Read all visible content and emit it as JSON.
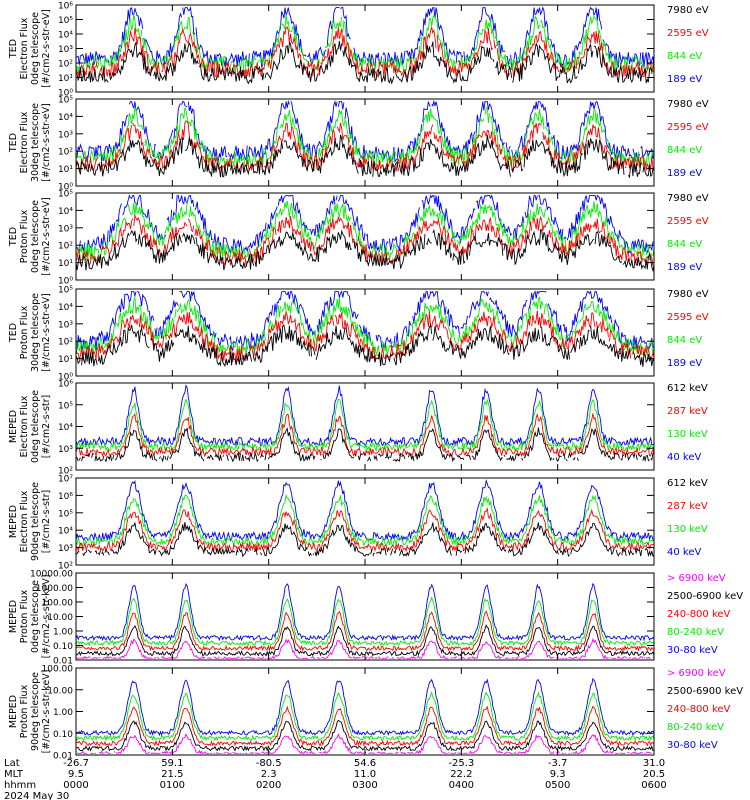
{
  "colors": {
    "black": "#000000",
    "red": "#ff0000",
    "green": "#00ee00",
    "blue": "#0000ff",
    "magenta": "#ff00ff"
  },
  "chart_data": {
    "type": "line",
    "date_label": "2024 May 30",
    "x_axis": {
      "row_labels": [
        "Lat",
        "MLT",
        "hhmm"
      ],
      "ticks": [
        {
          "lat": "-26.7",
          "mlt": "9.5",
          "hhmm": "0000"
        },
        {
          "lat": "59.1",
          "mlt": "21.5",
          "hhmm": "0100"
        },
        {
          "lat": "-80.5",
          "mlt": "2.3",
          "hhmm": "0200"
        },
        {
          "lat": "54.6",
          "mlt": "11.0",
          "hhmm": "0300"
        },
        {
          "lat": "-25.3",
          "mlt": "22.2",
          "hhmm": "0400"
        },
        {
          "lat": "-3.7",
          "mlt": "9.3",
          "hhmm": "0500"
        },
        {
          "lat": "31.0",
          "mlt": "20.5",
          "hhmm": "0600"
        }
      ]
    },
    "panels": [
      {
        "ylabel_lines": [
          "TED",
          "Electron Flux",
          "0deg telescope",
          "[#/cm2-s-str-eV]"
        ],
        "ytick_labels": [
          "10⁰",
          "10¹",
          "10²",
          "10³",
          "10⁴",
          "10⁵",
          "10⁶"
        ],
        "legend": [
          {
            "label": "7980 eV",
            "color": "black"
          },
          {
            "label": "2595 eV",
            "color": "red"
          },
          {
            "label": "844 eV",
            "color": "green"
          },
          {
            "label": "189 eV",
            "color": "blue"
          }
        ]
      },
      {
        "ylabel_lines": [
          "TED",
          "Electron Flux",
          "30deg telescope",
          "[#/cm2-s-str-eV]"
        ],
        "ytick_labels": [
          "10⁰",
          "10¹",
          "10²",
          "10³",
          "10⁴",
          "10⁵"
        ],
        "legend": [
          {
            "label": "7980 eV",
            "color": "black"
          },
          {
            "label": "2595 eV",
            "color": "red"
          },
          {
            "label": "844 eV",
            "color": "green"
          },
          {
            "label": "189 eV",
            "color": "blue"
          }
        ]
      },
      {
        "ylabel_lines": [
          "TED",
          "Proton Flux",
          "0deg telescope",
          "[#/cm2-s-str-eV]"
        ],
        "ytick_labels": [
          "10⁰",
          "10¹",
          "10²",
          "10³",
          "10⁴",
          "10⁵"
        ],
        "legend": [
          {
            "label": "7980 eV",
            "color": "black"
          },
          {
            "label": "2595 eV",
            "color": "red"
          },
          {
            "label": "844 eV",
            "color": "green"
          },
          {
            "label": "189 eV",
            "color": "blue"
          }
        ]
      },
      {
        "ylabel_lines": [
          "TED",
          "Proton Flux",
          "30deg telescope",
          "[#/cm2-s-str-eV]"
        ],
        "ytick_labels": [
          "10⁰",
          "10¹",
          "10²",
          "10³",
          "10⁴",
          "10⁵"
        ],
        "legend": [
          {
            "label": "7980 eV",
            "color": "black"
          },
          {
            "label": "2595 eV",
            "color": "red"
          },
          {
            "label": "844 eV",
            "color": "green"
          },
          {
            "label": "189 eV",
            "color": "blue"
          }
        ]
      },
      {
        "ylabel_lines": [
          "MEPED",
          "Electron Flux",
          "0deg telescope",
          "[#/cm2-s-str]"
        ],
        "ytick_labels": [
          "10²",
          "10³",
          "10⁴",
          "10⁵",
          "10⁶"
        ],
        "legend": [
          {
            "label": "612 keV",
            "color": "black"
          },
          {
            "label": "287 keV",
            "color": "red"
          },
          {
            "label": "130 keV",
            "color": "green"
          },
          {
            "label": "40 keV",
            "color": "blue"
          }
        ]
      },
      {
        "ylabel_lines": [
          "MEPED",
          "Electron Flux",
          "90deg telescope",
          "[#/cm2-s-str]"
        ],
        "ytick_labels": [
          "10²",
          "10³",
          "10⁴",
          "10⁵",
          "10⁶",
          "10⁷"
        ],
        "legend": [
          {
            "label": "612 keV",
            "color": "black"
          },
          {
            "label": "287 keV",
            "color": "red"
          },
          {
            "label": "130 keV",
            "color": "green"
          },
          {
            "label": "40 keV",
            "color": "blue"
          }
        ]
      },
      {
        "ylabel_lines": [
          "MEPED",
          "Proton Flux",
          "0deg telescope",
          "[#/cm2-s-str-keV]"
        ],
        "ytick_labels": [
          "0.01",
          "0.10",
          "1.00",
          "10.00",
          "100.00",
          "1000.00",
          "10000.00"
        ],
        "legend": [
          {
            "label": "> 6900 keV",
            "color": "magenta"
          },
          {
            "label": "2500-6900 keV",
            "color": "black"
          },
          {
            "label": "240-800 keV",
            "color": "red"
          },
          {
            "label": "80-240 keV",
            "color": "green"
          },
          {
            "label": "30-80 keV",
            "color": "blue"
          }
        ]
      },
      {
        "ylabel_lines": [
          "MEPED",
          "Proton Flux",
          "90deg telescope",
          "[#/cm2-s-str-keV]"
        ],
        "ytick_labels": [
          "0.01",
          "0.10",
          "1.00",
          "10.00",
          "100.00"
        ],
        "legend": [
          {
            "label": "> 6900 keV",
            "color": "magenta"
          },
          {
            "label": "2500-6900 keV",
            "color": "black"
          },
          {
            "label": "240-800 keV",
            "color": "red"
          },
          {
            "label": "80-240 keV",
            "color": "green"
          },
          {
            "label": "30-80 keV",
            "color": "blue"
          }
        ]
      }
    ]
  }
}
